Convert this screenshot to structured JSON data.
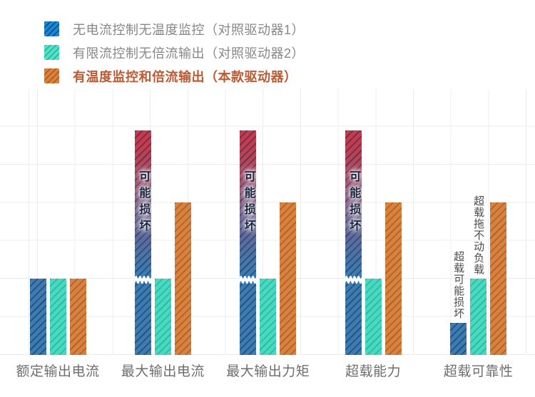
{
  "legend": {
    "items": [
      {
        "label": "无电流控制无温度监控（对照驱动器1）",
        "color": "#1f86d1",
        "text_color": "#878787",
        "emphasis": false
      },
      {
        "label": "有限流控制无倍流输出（对照驱动器2）",
        "color": "#55e0c8",
        "text_color": "#878787",
        "emphasis": false
      },
      {
        "label": "有温度监控和倍流输出（本款驱动器）",
        "color": "#d9813f",
        "text_color": "#bb5a33",
        "emphasis": true
      }
    ]
  },
  "chart_data": {
    "type": "bar",
    "categories": [
      "额定输出电流",
      "最大输出电流",
      "最大输出力矩",
      "超载能力",
      "超载可靠性"
    ],
    "series": [
      {
        "name": "无电流控制无温度监控（对照驱动器1）",
        "key": "driver1",
        "color": "#3c7cb2",
        "values": [
          2,
          5.9,
          5.9,
          5.9,
          0.85
        ],
        "overflow": [
          false,
          true,
          true,
          true,
          false
        ]
      },
      {
        "name": "有限流控制无倍流输出（对照驱动器2）",
        "key": "driver2",
        "color": "#49d9c0",
        "values": [
          2,
          2,
          2,
          2,
          2
        ],
        "overflow": [
          false,
          false,
          false,
          false,
          false
        ]
      },
      {
        "name": "有温度监控和倍流输出（本款驱动器）",
        "key": "driver3",
        "color": "#d9823f",
        "values": [
          2,
          4,
          4,
          4,
          4
        ],
        "overflow": [
          false,
          false,
          false,
          false,
          false
        ]
      }
    ],
    "annotations": [
      {
        "text": "可能损坏",
        "type": "in_bar",
        "category": 1,
        "series": 0
      },
      {
        "text": "可能损坏",
        "type": "in_bar",
        "category": 2,
        "series": 0
      },
      {
        "text": "可能损坏",
        "type": "in_bar",
        "category": 3,
        "series": 0
      },
      {
        "text": "超载可能损坏",
        "type": "above_bar",
        "category": 4,
        "series": 0
      },
      {
        "text": "超载拖不动负载",
        "type": "above_bar",
        "category": 4,
        "series": 1
      }
    ],
    "overflow_top_color": "#c23b4e",
    "grid_color": "#ececec",
    "ylim": [
      0,
      7
    ],
    "grid": true,
    "legend_position": "top-left"
  }
}
